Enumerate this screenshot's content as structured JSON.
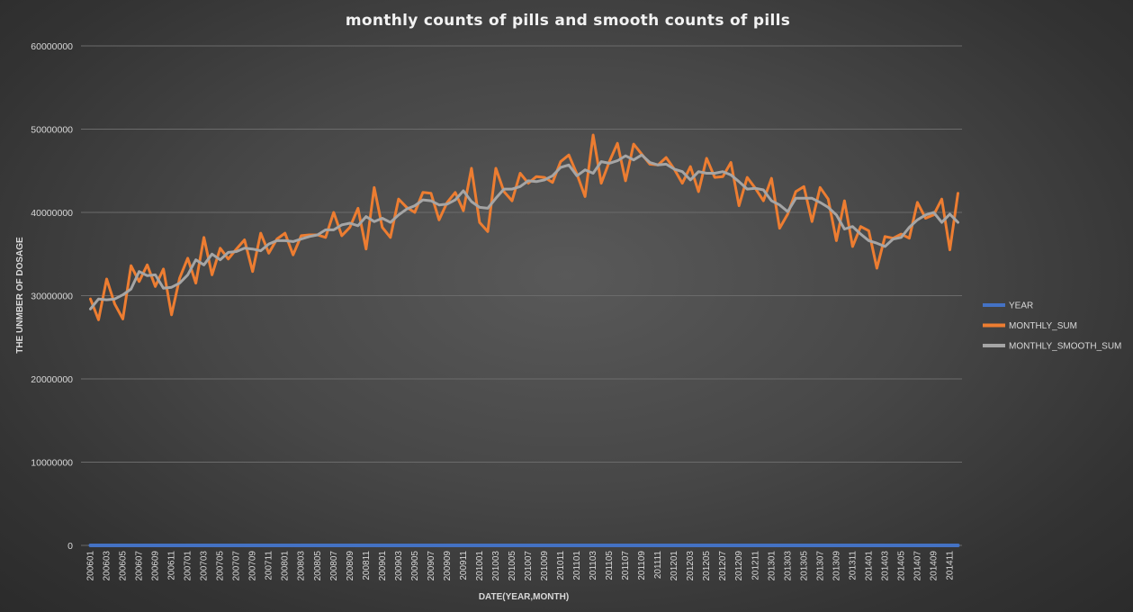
{
  "chart_data": {
    "type": "line",
    "title": "monthly counts of pills and smooth counts of pills",
    "xlabel": "DATE(YEAR,MONTH)",
    "ylabel": "THE UNMBER OF DOSAGE",
    "ylim": [
      0,
      60000000
    ],
    "yticks": [
      "0",
      "10000000",
      "20000000",
      "30000000",
      "40000000",
      "50000000",
      "60000000"
    ],
    "grid": true,
    "legend_position": "right",
    "x": [
      "200601",
      "200602",
      "200603",
      "200604",
      "200605",
      "200606",
      "200607",
      "200608",
      "200609",
      "200610",
      "200611",
      "200612",
      "200701",
      "200702",
      "200703",
      "200704",
      "200705",
      "200706",
      "200707",
      "200708",
      "200709",
      "200710",
      "200711",
      "200712",
      "200801",
      "200802",
      "200803",
      "200804",
      "200805",
      "200806",
      "200807",
      "200808",
      "200809",
      "200810",
      "200811",
      "200812",
      "200901",
      "200902",
      "200903",
      "200904",
      "200905",
      "200906",
      "200907",
      "200908",
      "200909",
      "200910",
      "200911",
      "200912",
      "201001",
      "201002",
      "201003",
      "201004",
      "201005",
      "201006",
      "201007",
      "201008",
      "201009",
      "201010",
      "201011",
      "201012",
      "201101",
      "201102",
      "201103",
      "201104",
      "201105",
      "201106",
      "201107",
      "201108",
      "201109",
      "201110",
      "201111",
      "201112",
      "201201",
      "201202",
      "201203",
      "201204",
      "201205",
      "201206",
      "201207",
      "201208",
      "201209",
      "201210",
      "201211",
      "201212",
      "201301",
      "201302",
      "201303",
      "201304",
      "201305",
      "201306",
      "201307",
      "201308",
      "201309",
      "201310",
      "201311",
      "201312",
      "201401",
      "201402",
      "201403",
      "201404",
      "201405",
      "201406",
      "201407",
      "201408",
      "201409",
      "201410",
      "201411",
      "201412"
    ],
    "xtick_labels": [
      "200601",
      "200603",
      "200605",
      "200607",
      "200609",
      "200611",
      "200701",
      "200703",
      "200705",
      "200707",
      "200709",
      "200711",
      "200801",
      "200803",
      "200805",
      "200807",
      "200809",
      "200811",
      "200901",
      "200903",
      "200905",
      "200907",
      "200909",
      "200911",
      "201001",
      "201003",
      "201005",
      "201007",
      "201009",
      "201011",
      "201101",
      "201103",
      "201105",
      "201107",
      "201109",
      "201111",
      "201201",
      "201203",
      "201205",
      "201207",
      "201209",
      "201211",
      "201301",
      "201303",
      "201305",
      "201307",
      "201309",
      "201311",
      "201401",
      "201403",
      "201405",
      "201407",
      "201409",
      "201411"
    ],
    "series": [
      {
        "name": "YEAR",
        "color": "#4472c4",
        "values": [
          2006,
          2006,
          2006,
          2006,
          2006,
          2006,
          2006,
          2006,
          2006,
          2006,
          2006,
          2006,
          2007,
          2007,
          2007,
          2007,
          2007,
          2007,
          2007,
          2007,
          2007,
          2007,
          2007,
          2007,
          2008,
          2008,
          2008,
          2008,
          2008,
          2008,
          2008,
          2008,
          2008,
          2008,
          2008,
          2008,
          2009,
          2009,
          2009,
          2009,
          2009,
          2009,
          2009,
          2009,
          2009,
          2009,
          2009,
          2009,
          2010,
          2010,
          2010,
          2010,
          2010,
          2010,
          2010,
          2010,
          2010,
          2010,
          2010,
          2010,
          2011,
          2011,
          2011,
          2011,
          2011,
          2011,
          2011,
          2011,
          2011,
          2011,
          2011,
          2011,
          2012,
          2012,
          2012,
          2012,
          2012,
          2012,
          2012,
          2012,
          2012,
          2012,
          2012,
          2012,
          2013,
          2013,
          2013,
          2013,
          2013,
          2013,
          2013,
          2013,
          2013,
          2013,
          2013,
          2013,
          2014,
          2014,
          2014,
          2014,
          2014,
          2014,
          2014,
          2014,
          2014,
          2014,
          2014,
          2014
        ]
      },
      {
        "name": "MONTHLY_SUM",
        "color": "#ed7d31",
        "values": [
          29600000,
          27100000,
          32000000,
          29000000,
          27200000,
          33600000,
          31700000,
          33700000,
          31100000,
          33200000,
          27700000,
          32100000,
          34500000,
          31500000,
          37000000,
          32500000,
          35700000,
          34400000,
          35600000,
          36700000,
          32900000,
          37500000,
          35100000,
          36800000,
          37500000,
          34900000,
          37200000,
          37300000,
          37300000,
          37000000,
          40000000,
          37200000,
          38200000,
          40500000,
          35600000,
          43000000,
          38200000,
          37000000,
          41600000,
          40600000,
          40000000,
          42400000,
          42300000,
          39100000,
          41200000,
          42400000,
          40200000,
          45300000,
          38800000,
          37700000,
          45300000,
          42500000,
          41400000,
          44700000,
          43500000,
          44300000,
          44200000,
          43600000,
          46100000,
          46900000,
          44600000,
          41900000,
          49300000,
          43500000,
          46100000,
          48300000,
          43800000,
          48200000,
          47000000,
          45800000,
          45700000,
          46600000,
          45200000,
          43500000,
          45500000,
          42500000,
          46500000,
          44200000,
          44300000,
          46000000,
          40800000,
          44200000,
          42900000,
          41400000,
          44100000,
          38100000,
          39800000,
          42500000,
          43100000,
          38900000,
          43000000,
          41600000,
          36600000,
          41400000,
          35900000,
          38300000,
          37800000,
          33300000,
          37100000,
          36900000,
          37400000,
          36900000,
          41200000,
          39300000,
          39700000,
          41600000,
          35500000,
          42300000
        ]
      },
      {
        "name": "MONTHLY_SMOOTH_SUM",
        "color": "#a5a5a5",
        "values": [
          28400000,
          29600000,
          29500000,
          29600000,
          30100000,
          30800000,
          32900000,
          32400000,
          32500000,
          30900000,
          31000000,
          31500000,
          32500000,
          34300000,
          33700000,
          35000000,
          34300000,
          35200000,
          35300000,
          35700000,
          35600000,
          35400000,
          36200000,
          36600000,
          36600000,
          36500000,
          36800000,
          37100000,
          37300000,
          37900000,
          37900000,
          38500000,
          38700000,
          38400000,
          39500000,
          38900000,
          39300000,
          38800000,
          39700000,
          40400000,
          40800000,
          41500000,
          41400000,
          40900000,
          41000000,
          41500000,
          42600000,
          41300000,
          40600000,
          40500000,
          41700000,
          42800000,
          42800000,
          43100000,
          43800000,
          43700000,
          43900000,
          44400000,
          45400000,
          45700000,
          44400000,
          45100000,
          44700000,
          46100000,
          45900000,
          46200000,
          46800000,
          46300000,
          46900000,
          46000000,
          45700000,
          45800000,
          45200000,
          44900000,
          43900000,
          44900000,
          44700000,
          44700000,
          44900000,
          44500000,
          43700000,
          42800000,
          42900000,
          42700000,
          41400000,
          40900000,
          40100000,
          41700000,
          41700000,
          41700000,
          41200000,
          40600000,
          39700000,
          38000000,
          38300000,
          37400000,
          36600000,
          36300000,
          35900000,
          36800000,
          37000000,
          38200000,
          39100000,
          39700000,
          40000000,
          38800000,
          39800000,
          38800000
        ]
      }
    ]
  }
}
